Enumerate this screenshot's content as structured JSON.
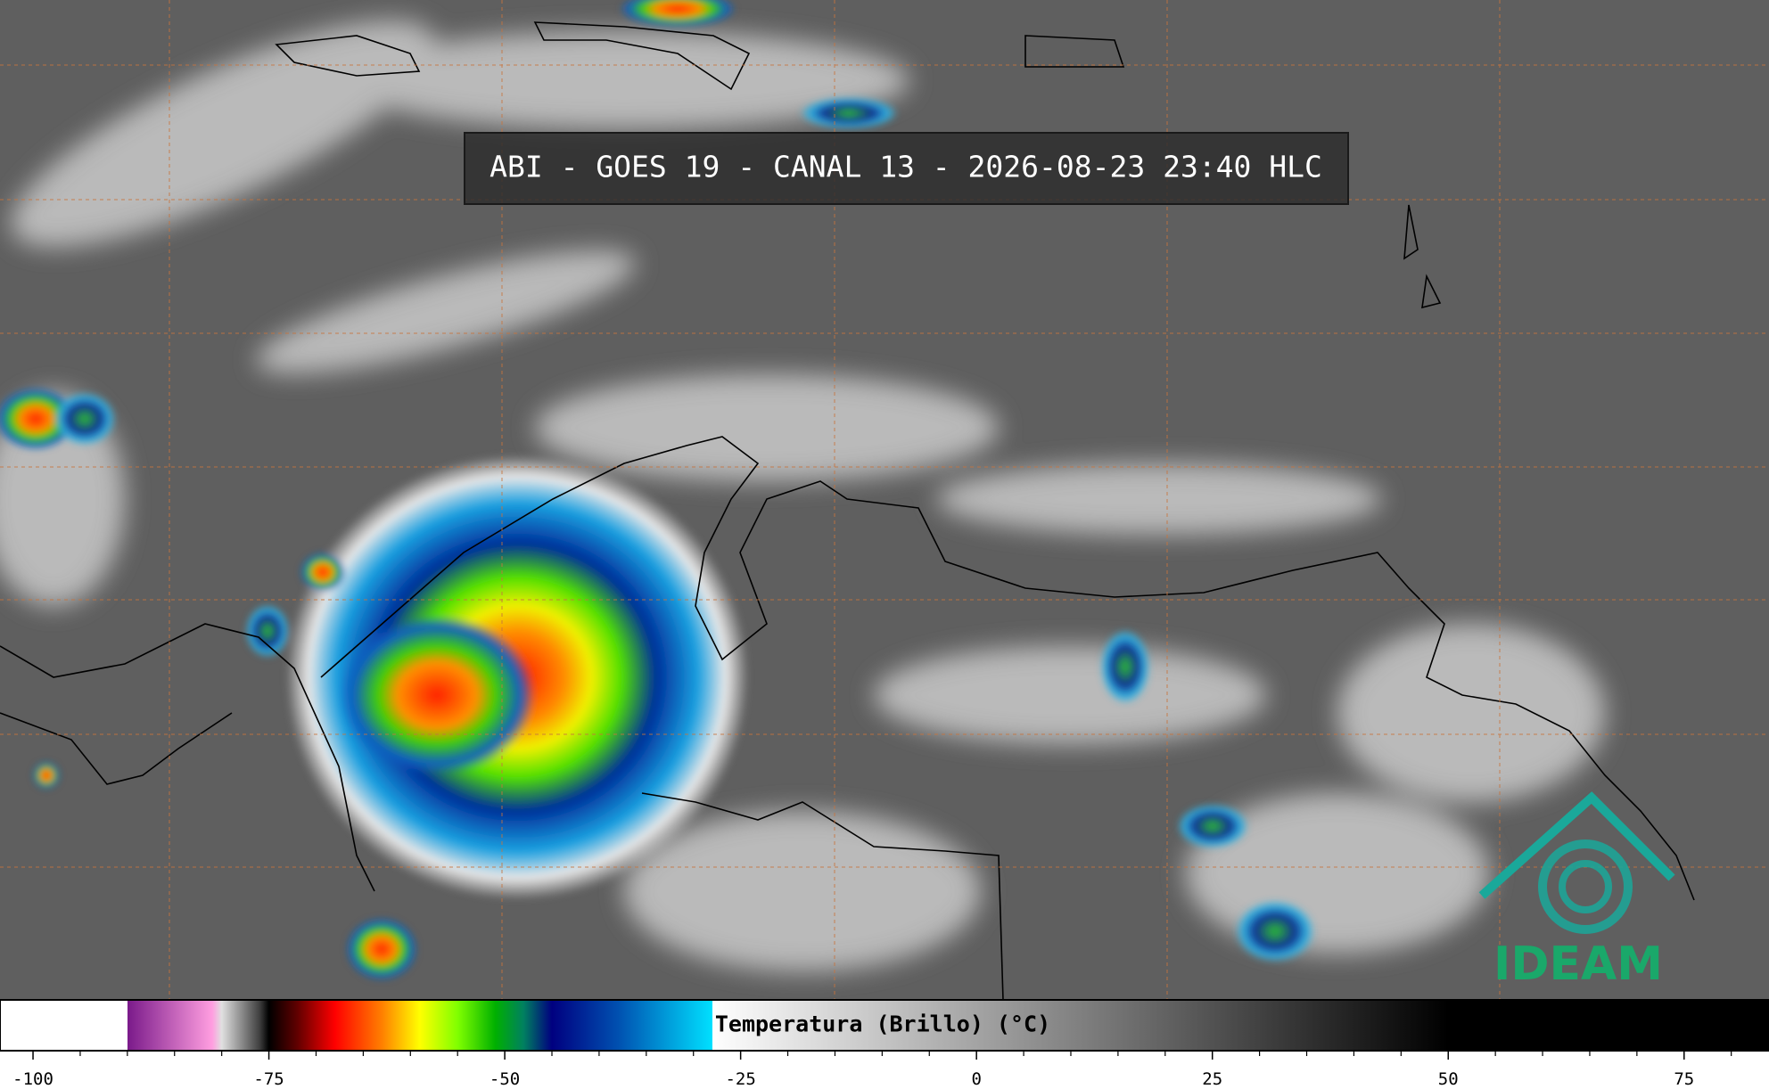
{
  "header": {
    "title": "ABI - GOES 19 - CANAL 13 - 2026-08-23 23:40 HLC"
  },
  "logo": {
    "text": "IDEAM"
  },
  "colorbar": {
    "label": "Temperatura (Brillo) (°C)",
    "xlim": [
      -103.5,
      84
    ],
    "xticks": [
      -100,
      -75,
      -50,
      -25,
      0,
      25,
      50,
      75
    ],
    "xminor": [
      -95,
      -90,
      -85,
      -80,
      -70,
      -65,
      -60,
      -55,
      -45,
      -40,
      -35,
      -30,
      -20,
      -15,
      -10,
      -5,
      5,
      10,
      15,
      20,
      30,
      35,
      40,
      45,
      55,
      60,
      65,
      70,
      80
    ],
    "colormap": [
      {
        "value": -90,
        "color": "#ffffff"
      },
      {
        "value": -90,
        "color": "#7a1a8a"
      },
      {
        "value": -81,
        "color": "#ff9ee0"
      },
      {
        "value": -80,
        "color": "#e0e0e0"
      },
      {
        "value": -76,
        "color": "#404040"
      },
      {
        "value": -75,
        "color": "#000000"
      },
      {
        "value": -72,
        "color": "#600000"
      },
      {
        "value": -68,
        "color": "#ff0000"
      },
      {
        "value": -63,
        "color": "#ff8000"
      },
      {
        "value": -59,
        "color": "#ffff00"
      },
      {
        "value": -55,
        "color": "#80ff00"
      },
      {
        "value": -51,
        "color": "#00b000"
      },
      {
        "value": -48,
        "color": "#008060"
      },
      {
        "value": -45,
        "color": "#000080"
      },
      {
        "value": -38,
        "color": "#0050b0"
      },
      {
        "value": -28,
        "color": "#00e0ff"
      },
      {
        "value": -28,
        "color": "#ffffff"
      },
      {
        "value": 50,
        "color": "#000000"
      }
    ]
  }
}
